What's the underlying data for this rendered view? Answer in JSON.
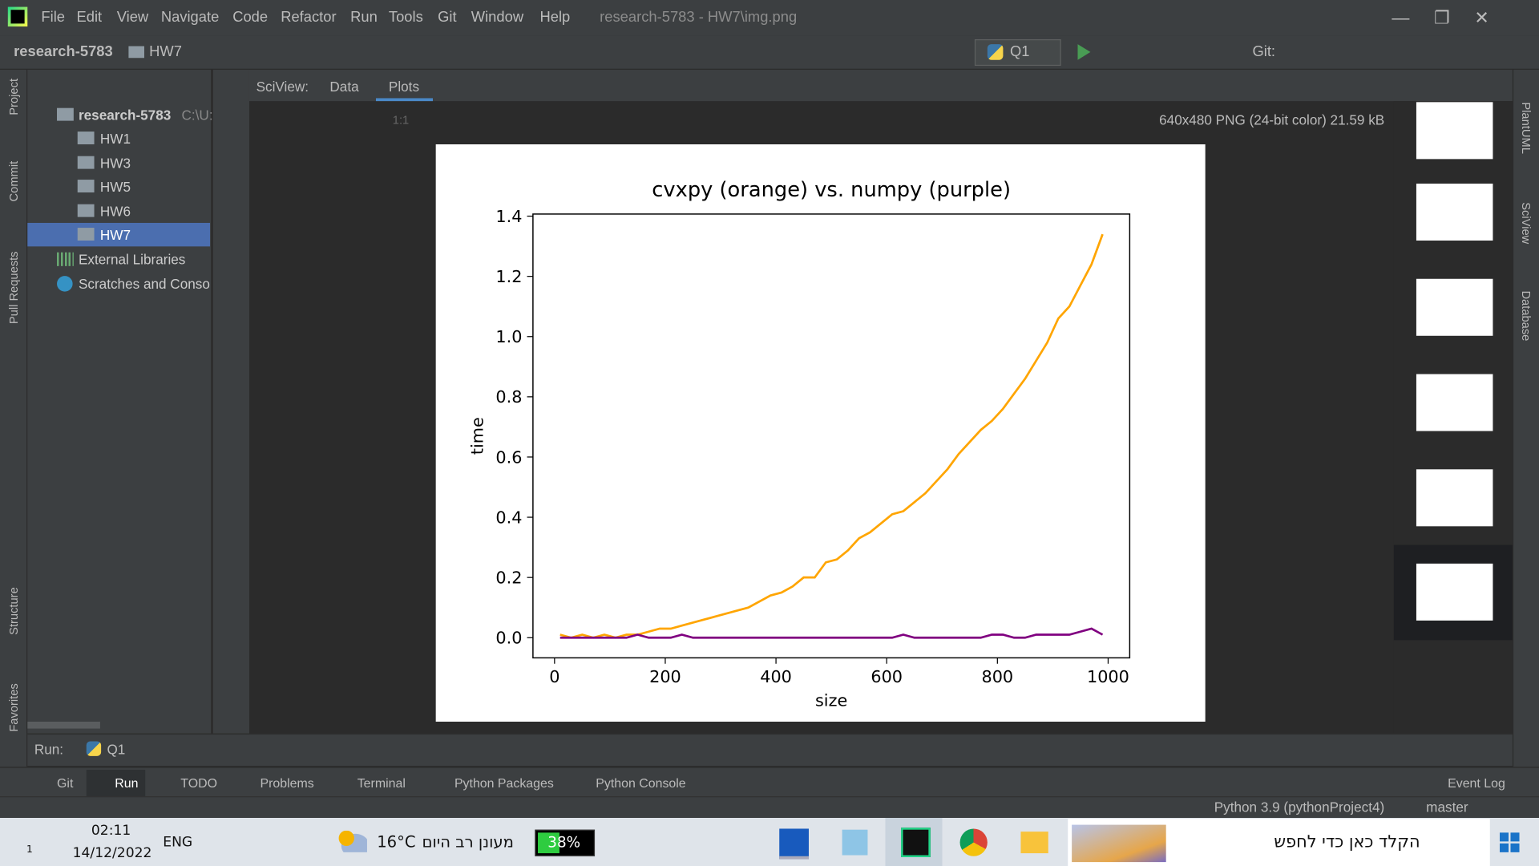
{
  "menu": [
    "File",
    "Edit",
    "View",
    "Navigate",
    "Code",
    "Refactor",
    "Run",
    "Tools",
    "Git",
    "Window",
    "Help"
  ],
  "window_title": "research-5783 - HW7\\img.png",
  "breadcrumb": [
    "research-5783",
    "HW7"
  ],
  "run_config": "Q1",
  "git_label": "Git:",
  "left_tabs": [
    "Project",
    "Commit",
    "Pull Requests",
    "Structure",
    "Favorites"
  ],
  "right_tabs": [
    "PlantUML",
    "SciView",
    "Database"
  ],
  "project_tree": {
    "root": "research-5783",
    "root_path": "C:\\U:",
    "items": [
      "HW1",
      "HW3",
      "HW5",
      "HW6",
      "HW7"
    ],
    "external": "External Libraries",
    "scratches": "Scratches and Conso"
  },
  "sciview": {
    "label": "SciView:",
    "tabs": [
      "Data",
      "Plots"
    ],
    "zoom_label": "1:1",
    "image_info": "640x480 PNG (24-bit color) 21.59 kB"
  },
  "chart_data": {
    "type": "line",
    "title": "cvxpy (orange) vs. numpy (purple)",
    "xlabel": "size",
    "ylabel": "time",
    "x": [
      10,
      30,
      50,
      70,
      90,
      110,
      130,
      150,
      170,
      190,
      210,
      230,
      250,
      270,
      290,
      310,
      330,
      350,
      370,
      390,
      410,
      430,
      450,
      470,
      490,
      510,
      530,
      550,
      570,
      590,
      610,
      630,
      650,
      670,
      690,
      710,
      730,
      750,
      770,
      790,
      810,
      830,
      850,
      870,
      890,
      910,
      930,
      950,
      970,
      990
    ],
    "series": [
      {
        "name": "cvxpy",
        "color": "#ffa500",
        "values": [
          0.01,
          0.0,
          0.01,
          0.0,
          0.01,
          0.0,
          0.01,
          0.01,
          0.02,
          0.03,
          0.03,
          0.04,
          0.05,
          0.06,
          0.07,
          0.08,
          0.09,
          0.1,
          0.12,
          0.14,
          0.15,
          0.17,
          0.2,
          0.2,
          0.25,
          0.26,
          0.29,
          0.33,
          0.35,
          0.38,
          0.41,
          0.42,
          0.45,
          0.48,
          0.52,
          0.56,
          0.61,
          0.65,
          0.69,
          0.72,
          0.76,
          0.81,
          0.86,
          0.92,
          0.98,
          1.06,
          1.1,
          1.17,
          1.24,
          1.34
        ]
      },
      {
        "name": "numpy",
        "color": "#800080",
        "values": [
          0,
          0,
          0,
          0,
          0,
          0,
          0,
          0.01,
          0,
          0,
          0,
          0.01,
          0,
          0,
          0,
          0,
          0,
          0,
          0,
          0,
          0,
          0,
          0,
          0,
          0,
          0,
          0,
          0,
          0,
          0,
          0,
          0.01,
          0,
          0,
          0,
          0,
          0,
          0,
          0,
          0.01,
          0.01,
          0,
          0,
          0.01,
          0.01,
          0.01,
          0.01,
          0.02,
          0.03,
          0.01
        ]
      }
    ],
    "xlim": [
      -39,
      1039
    ],
    "ylim": [
      -0.067,
      1.407
    ],
    "xticks": [
      0,
      200,
      400,
      600,
      800,
      1000
    ],
    "yticks": [
      {
        "value": 0,
        "label": "0.0"
      },
      0.2,
      0.4,
      0.6,
      0.8,
      {
        "value": 1,
        "label": "1.0"
      },
      1.2,
      1.4
    ]
  },
  "run_panel": {
    "label": "Run:",
    "tab": "Q1"
  },
  "bottom_tabs": [
    "Git",
    "Run",
    "TODO",
    "Problems",
    "Terminal",
    "Python Packages",
    "Python Console"
  ],
  "event_log": "Event Log",
  "status": {
    "interpreter": "Python 3.9 (pythonProject4)",
    "branch": "master"
  },
  "taskbar": {
    "time": "02:11",
    "date": "14/12/2022",
    "lang": "ENG",
    "notification_count": 1,
    "temperature": "16°C",
    "weather": "מעונן רב היום",
    "battery": "38%",
    "search": "הקלד כאן כדי לחפש"
  }
}
